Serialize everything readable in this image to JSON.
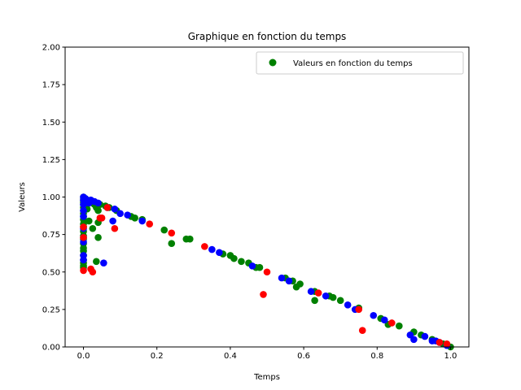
{
  "chart_data": {
    "type": "scatter",
    "title": "Graphique en fonction du temps",
    "xlabel": "Temps",
    "ylabel": "Valeurs",
    "xlim": [
      -0.05,
      1.05
    ],
    "ylim": [
      0.0,
      2.0
    ],
    "xticks": [
      "0.0",
      "0.2",
      "0.4",
      "0.6",
      "0.8",
      "1.0"
    ],
    "xtick_values": [
      0.0,
      0.2,
      0.4,
      0.6,
      0.8,
      1.0
    ],
    "yticks": [
      "0.00",
      "0.25",
      "0.50",
      "0.75",
      "1.00",
      "1.25",
      "1.50",
      "1.75",
      "2.00"
    ],
    "ytick_values": [
      0.0,
      0.25,
      0.5,
      0.75,
      1.0,
      1.25,
      1.5,
      1.75,
      2.0
    ],
    "grid": false,
    "legend": {
      "placement": "top-right",
      "entries": [
        {
          "label": "Valeurs en fonction du temps",
          "color": "#008000"
        }
      ]
    },
    "colors": {
      "green": "#008000",
      "blue": "#0000ff",
      "red": "#ff0000"
    },
    "series": [
      {
        "color": "#008000",
        "points": [
          [
            0.0,
            1.0
          ],
          [
            0.0,
            0.99
          ],
          [
            0.0,
            0.98
          ],
          [
            0.0,
            0.97
          ],
          [
            0.0,
            0.96
          ],
          [
            0.0,
            0.95
          ],
          [
            0.0,
            0.93
          ],
          [
            0.0,
            0.91
          ],
          [
            0.0,
            0.89
          ],
          [
            0.0,
            0.87
          ],
          [
            0.0,
            0.85
          ],
          [
            0.0,
            0.82
          ],
          [
            0.0,
            0.8
          ],
          [
            0.0,
            0.77
          ],
          [
            0.0,
            0.74
          ],
          [
            0.0,
            0.72
          ],
          [
            0.0,
            0.69
          ],
          [
            0.0,
            0.66
          ],
          [
            0.0,
            0.64
          ],
          [
            0.0,
            0.61
          ],
          [
            0.0,
            0.58
          ],
          [
            0.0,
            0.56
          ],
          [
            0.0,
            0.54
          ],
          [
            0.0,
            0.53
          ],
          [
            0.005,
            0.99
          ],
          [
            0.005,
            0.96
          ],
          [
            0.01,
            0.98
          ],
          [
            0.01,
            0.95
          ],
          [
            0.01,
            0.92
          ],
          [
            0.015,
            0.97
          ],
          [
            0.015,
            0.84
          ],
          [
            0.02,
            0.97
          ],
          [
            0.025,
            0.96
          ],
          [
            0.025,
            0.79
          ],
          [
            0.03,
            0.95
          ],
          [
            0.035,
            0.93
          ],
          [
            0.035,
            0.57
          ],
          [
            0.04,
            0.91
          ],
          [
            0.04,
            0.83
          ],
          [
            0.04,
            0.73
          ],
          [
            0.045,
            0.95
          ],
          [
            0.06,
            0.94
          ],
          [
            0.07,
            0.93
          ],
          [
            0.09,
            0.91
          ],
          [
            0.13,
            0.87
          ],
          [
            0.14,
            0.86
          ],
          [
            0.16,
            0.85
          ],
          [
            0.22,
            0.78
          ],
          [
            0.24,
            0.69
          ],
          [
            0.28,
            0.72
          ],
          [
            0.29,
            0.72
          ],
          [
            0.38,
            0.62
          ],
          [
            0.4,
            0.61
          ],
          [
            0.41,
            0.59
          ],
          [
            0.43,
            0.57
          ],
          [
            0.45,
            0.56
          ],
          [
            0.47,
            0.53
          ],
          [
            0.48,
            0.53
          ],
          [
            0.55,
            0.46
          ],
          [
            0.57,
            0.44
          ],
          [
            0.58,
            0.4
          ],
          [
            0.59,
            0.42
          ],
          [
            0.63,
            0.31
          ],
          [
            0.63,
            0.37
          ],
          [
            0.67,
            0.34
          ],
          [
            0.68,
            0.33
          ],
          [
            0.7,
            0.31
          ],
          [
            0.75,
            0.26
          ],
          [
            0.81,
            0.19
          ],
          [
            0.83,
            0.15
          ],
          [
            0.86,
            0.14
          ],
          [
            0.9,
            0.1
          ],
          [
            0.92,
            0.08
          ],
          [
            0.95,
            0.05
          ],
          [
            0.98,
            0.02
          ],
          [
            1.0,
            0.0
          ]
        ]
      },
      {
        "color": "#0000ff",
        "points": [
          [
            0.0,
            1.0
          ],
          [
            0.0,
            0.98
          ],
          [
            0.0,
            0.95
          ],
          [
            0.0,
            0.91
          ],
          [
            0.0,
            0.87
          ],
          [
            0.0,
            0.79
          ],
          [
            0.0,
            0.73
          ],
          [
            0.0,
            0.7
          ],
          [
            0.0,
            0.61
          ],
          [
            0.0,
            0.58
          ],
          [
            0.005,
            0.99
          ],
          [
            0.01,
            0.97
          ],
          [
            0.015,
            0.96
          ],
          [
            0.02,
            0.98
          ],
          [
            0.03,
            0.97
          ],
          [
            0.04,
            0.96
          ],
          [
            0.055,
            0.56
          ],
          [
            0.065,
            0.93
          ],
          [
            0.08,
            0.84
          ],
          [
            0.085,
            0.92
          ],
          [
            0.1,
            0.89
          ],
          [
            0.12,
            0.88
          ],
          [
            0.16,
            0.84
          ],
          [
            0.35,
            0.65
          ],
          [
            0.37,
            0.63
          ],
          [
            0.46,
            0.54
          ],
          [
            0.54,
            0.46
          ],
          [
            0.56,
            0.44
          ],
          [
            0.62,
            0.37
          ],
          [
            0.66,
            0.34
          ],
          [
            0.72,
            0.28
          ],
          [
            0.74,
            0.25
          ],
          [
            0.79,
            0.21
          ],
          [
            0.82,
            0.18
          ],
          [
            0.89,
            0.08
          ],
          [
            0.9,
            0.05
          ],
          [
            0.93,
            0.07
          ],
          [
            0.95,
            0.04
          ],
          [
            0.96,
            0.04
          ],
          [
            0.97,
            0.03
          ],
          [
            0.99,
            0.01
          ]
        ]
      },
      {
        "color": "#ff0000",
        "points": [
          [
            0.0,
            0.51
          ],
          [
            0.0,
            0.8
          ],
          [
            0.0,
            0.73
          ],
          [
            0.02,
            0.52
          ],
          [
            0.025,
            0.5
          ],
          [
            0.045,
            0.86
          ],
          [
            0.05,
            0.86
          ],
          [
            0.065,
            0.93
          ],
          [
            0.085,
            0.79
          ],
          [
            0.18,
            0.82
          ],
          [
            0.24,
            0.76
          ],
          [
            0.33,
            0.67
          ],
          [
            0.49,
            0.35
          ],
          [
            0.5,
            0.5
          ],
          [
            0.64,
            0.36
          ],
          [
            0.75,
            0.25
          ],
          [
            0.76,
            0.11
          ],
          [
            0.84,
            0.16
          ],
          [
            0.97,
            0.03
          ],
          [
            0.99,
            0.02
          ]
        ]
      }
    ]
  }
}
